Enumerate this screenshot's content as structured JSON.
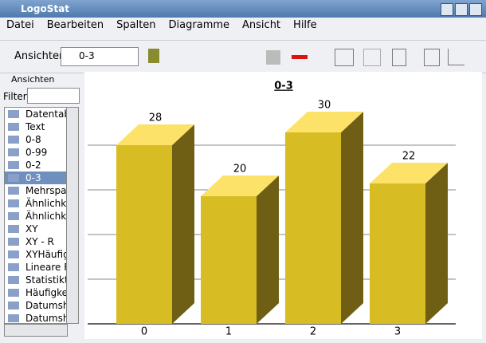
{
  "window": {
    "title": "LogoStat"
  },
  "menu": [
    "Datei",
    "Bearbeiten",
    "Spalten",
    "Diagramme",
    "Ansicht",
    "Hilfe"
  ],
  "toolbar": {
    "label": "Ansichten",
    "selected": "0-3"
  },
  "side_panel": {
    "title": "Ansichten",
    "filter_label": "Filter",
    "items": [
      "Datentab",
      "Text",
      "0-8",
      "0-99",
      "0-2",
      "0-3",
      "Mehrspa",
      "Ähnlichk",
      "Ähnlichk",
      "XY",
      "XY - R",
      "XYHäufig",
      "Lineare R",
      "Statistikta",
      "Häufigke",
      "Datumsh",
      "Datumsh"
    ]
  },
  "chart_data": {
    "type": "bar3d",
    "title": "0-3",
    "categories": [
      "0",
      "1",
      "2",
      "3"
    ],
    "values": [
      28,
      20,
      30,
      22
    ],
    "color": "#d8bc24",
    "top_color": "#fde26a",
    "side_color": "#6f5f14",
    "ylim": [
      0,
      30
    ],
    "yticks": [
      0,
      7,
      14,
      21,
      28
    ],
    "grid": true
  }
}
